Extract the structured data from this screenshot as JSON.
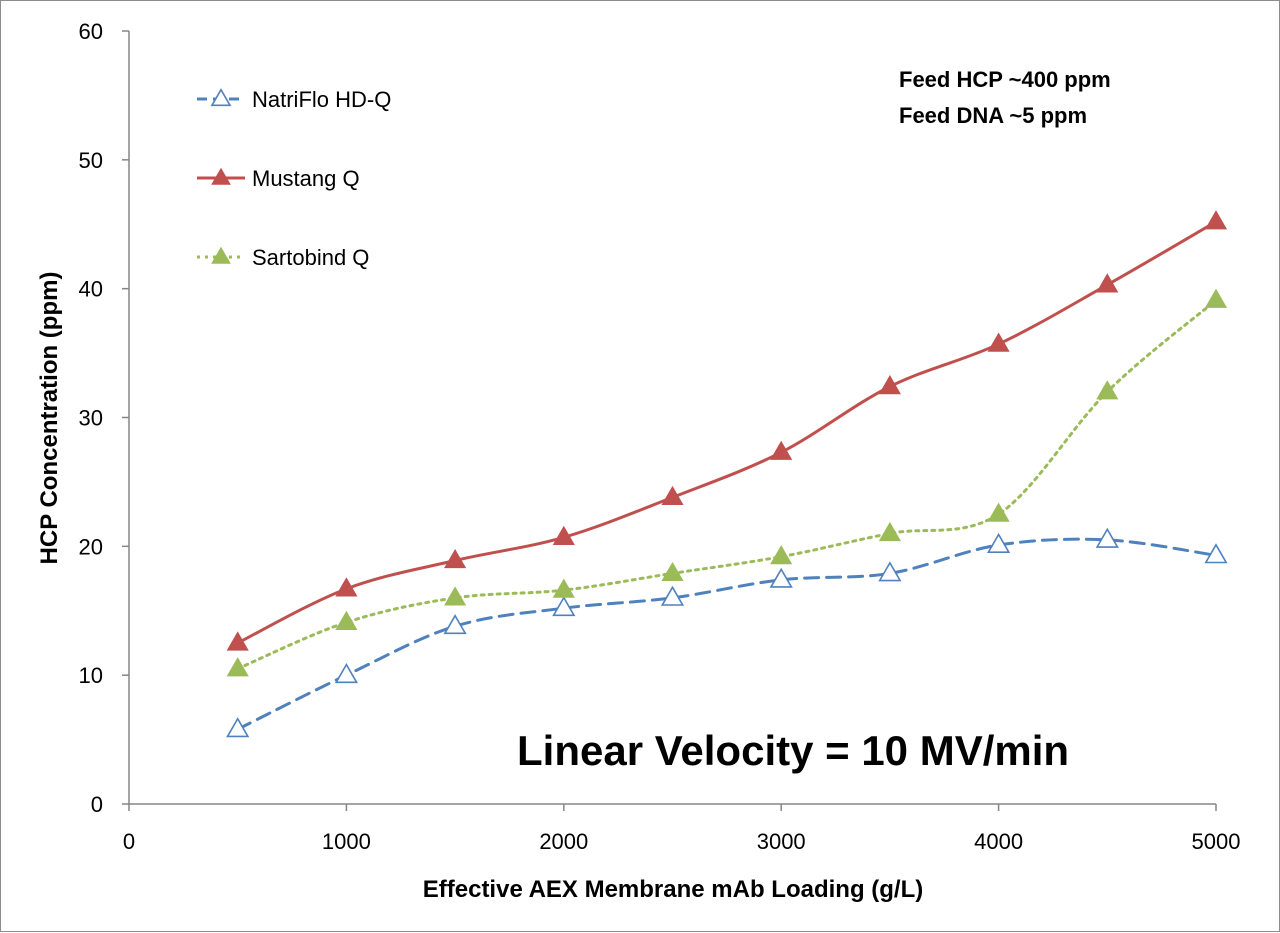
{
  "chart_data": {
    "type": "line",
    "xlabel": "Effective AEX Membrane mAb Loading (g/L)",
    "ylabel": "HCP Concentration (ppm)",
    "xlim": [
      0,
      5000
    ],
    "ylim": [
      0,
      60
    ],
    "x_ticks": [
      "0",
      "1000",
      "2000",
      "3000",
      "4000",
      "5000"
    ],
    "y_ticks": [
      "0",
      "10",
      "20",
      "30",
      "40",
      "50",
      "60"
    ],
    "grid": false,
    "legend_position": "top-left",
    "x": [
      500,
      1000,
      1500,
      2000,
      2500,
      3000,
      3500,
      4000,
      4500,
      5000
    ],
    "series": [
      {
        "name": "NatriFlo HD-Q",
        "color": "#4f81bd",
        "line_style": "dashed",
        "marker": "open-triangle",
        "values": [
          5.8,
          10.0,
          13.8,
          15.2,
          16.0,
          17.4,
          17.9,
          20.1,
          20.5,
          19.3
        ]
      },
      {
        "name": "Mustang Q",
        "color": "#c0504d",
        "line_style": "solid",
        "marker": "filled-triangle",
        "values": [
          12.5,
          16.7,
          18.9,
          20.7,
          23.8,
          27.3,
          32.4,
          35.7,
          40.3,
          45.2
        ]
      },
      {
        "name": "Sartobind Q",
        "color": "#9bbb59",
        "line_style": "dotted",
        "marker": "filled-triangle",
        "values": [
          10.5,
          14.1,
          16.0,
          16.6,
          17.9,
          19.2,
          21.0,
          22.5,
          32.0,
          39.1
        ]
      }
    ],
    "annotations": [
      "Feed HCP ~400 ppm",
      "Feed DNA ~5 ppm",
      "Linear Velocity = 10 MV/min"
    ]
  }
}
